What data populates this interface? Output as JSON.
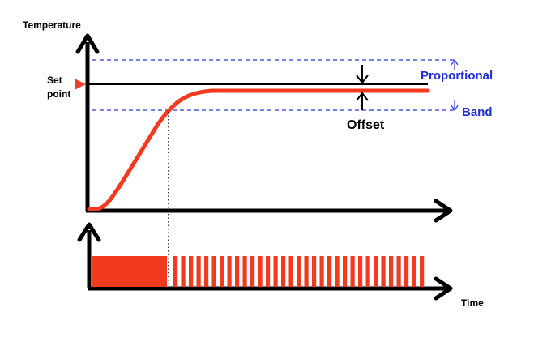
{
  "labels": {
    "temperature_axis": "Temperature",
    "set_point_line1": "Set",
    "set_point_line2": "point",
    "proportional": "Proportional",
    "band": "Band",
    "offset": "Offset",
    "time_axis": "Time"
  },
  "colors": {
    "axis": "#000000",
    "response_curve": "#f23a1f",
    "output_pulses": "#f23a1f",
    "band_lines": "#2a3bd6",
    "band_text": "#1f2fd0",
    "set_point_marker": "#e8432a"
  },
  "icons": {
    "set_point_marker": "triangle-right-icon",
    "offset_arrows": "double-arrow-icon"
  }
}
